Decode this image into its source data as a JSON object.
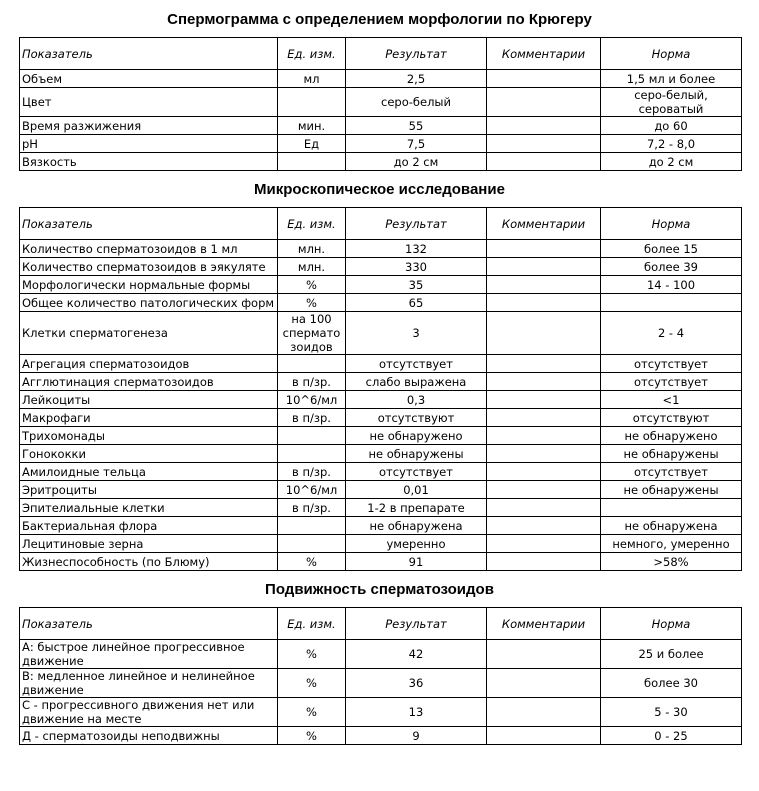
{
  "sections": [
    {
      "title": "Спермограмма с определением морфологии по Крюгеру",
      "header": [
        "Показатель",
        "Ед. изм.",
        "Результат",
        "Комментарии",
        "Норма"
      ],
      "rows": [
        [
          "Объем",
          "мл",
          "2,5",
          null,
          "1,5 мл и более"
        ],
        [
          "Цвет",
          null,
          "серо-белый",
          null,
          "серо-белый, сероватый"
        ],
        [
          "Время разжижения",
          "мин.",
          "55",
          null,
          "до 60"
        ],
        [
          "pH",
          "Ед",
          "7,5",
          null,
          "7,2 - 8,0"
        ],
        [
          "Вязкость",
          null,
          "до 2 см",
          null,
          "до 2 см"
        ]
      ]
    },
    {
      "title": "Микроскопическое исследование",
      "header": [
        "Показатель",
        "Ед. изм.",
        "Результат",
        "Комментарии",
        "Норма"
      ],
      "rows": [
        [
          "Количество сперматозоидов в 1 мл",
          "млн.",
          "132",
          null,
          "более 15"
        ],
        [
          "Количество сперматозоидов в эякуляте",
          "млн.",
          "330",
          null,
          "более 39"
        ],
        [
          "Морфологически нормальные формы",
          "%",
          "35",
          null,
          "14 - 100"
        ],
        [
          "Общее количество патологических форм",
          "%",
          "65",
          null,
          null
        ],
        [
          "Клетки сперматогенеза",
          "на 100 сперматозоидов",
          "3",
          null,
          "2 - 4"
        ],
        [
          "Агрегация сперматозоидов",
          null,
          "отсутствует",
          null,
          "отсутствует"
        ],
        [
          "Агглютинация сперматозоидов",
          "в п/зр.",
          "слабо выражена",
          null,
          "отсутствует"
        ],
        [
          "Лейкоциты",
          "10^6/мл",
          "0,3",
          null,
          "<1"
        ],
        [
          "Макрофаги",
          "в п/зр.",
          "отсутствуют",
          null,
          "отсутствуют"
        ],
        [
          "Трихомонады",
          null,
          "не обнаружено",
          null,
          "не обнаружено"
        ],
        [
          "Гонококки",
          null,
          "не обнаружены",
          null,
          "не обнаружены"
        ],
        [
          "Амилоидные тельца",
          "в п/зр.",
          "отсутствует",
          null,
          "отсутствует"
        ],
        [
          "Эритроциты",
          "10^6/мл",
          "0,01",
          null,
          "не обнаружены"
        ],
        [
          "Эпителиальные клетки",
          "в п/зр.",
          "1-2 в препарате",
          null,
          null
        ],
        [
          "Бактериальная флора",
          null,
          "не обнаружена",
          null,
          "не обнаружена"
        ],
        [
          "Лецитиновые зерна",
          null,
          "умеренно",
          null,
          "немного, умеренно"
        ],
        [
          "Жизнеспособность (по Блюму)",
          "%",
          "91",
          null,
          ">58%"
        ]
      ]
    },
    {
      "title": "Подвижность сперматозоидов",
      "header": [
        "Показатель",
        "Ед. изм.",
        "Результат",
        "Комментарии",
        "Норма"
      ],
      "rows": [
        [
          "А: быстрое линейное прогрессивное движение",
          "%",
          "42",
          null,
          "25 и более"
        ],
        [
          "В: медленное линейное и нелинейное движение",
          "%",
          "36",
          null,
          "более 30"
        ],
        [
          "С - прогрессивного движения нет или движение на месте",
          "%",
          "13",
          null,
          "5 - 30"
        ],
        [
          "Д - сперматозоиды неподвижны",
          "%",
          "9",
          null,
          "0 - 25"
        ]
      ]
    }
  ]
}
